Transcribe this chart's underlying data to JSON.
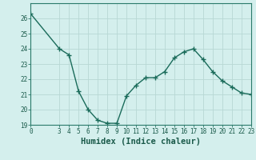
{
  "x": [
    0,
    3,
    4,
    5,
    6,
    7,
    8,
    9,
    10,
    11,
    12,
    13,
    14,
    15,
    16,
    17,
    18,
    19,
    20,
    21,
    22,
    23
  ],
  "y": [
    26.3,
    24.0,
    23.6,
    21.2,
    20.0,
    19.3,
    19.1,
    19.1,
    20.9,
    21.6,
    22.1,
    22.1,
    22.5,
    23.4,
    23.8,
    24.0,
    23.3,
    22.5,
    21.9,
    21.5,
    21.1,
    21.0
  ],
  "line_color": "#1a6b5a",
  "marker": "+",
  "marker_size": 4,
  "marker_edge_width": 1.0,
  "bg_color": "#d4efed",
  "grid_color": "#b8d8d4",
  "xlabel": "Humidex (Indice chaleur)",
  "ylim": [
    19,
    27
  ],
  "xlim": [
    0,
    23
  ],
  "yticks": [
    19,
    20,
    21,
    22,
    23,
    24,
    25,
    26
  ],
  "xticks": [
    0,
    3,
    4,
    5,
    6,
    7,
    8,
    9,
    10,
    11,
    12,
    13,
    14,
    15,
    16,
    17,
    18,
    19,
    20,
    21,
    22,
    23
  ],
  "tick_fontsize": 5.5,
  "xlabel_fontsize": 7.5,
  "line_width": 1.0,
  "spine_color": "#2a7a6a"
}
